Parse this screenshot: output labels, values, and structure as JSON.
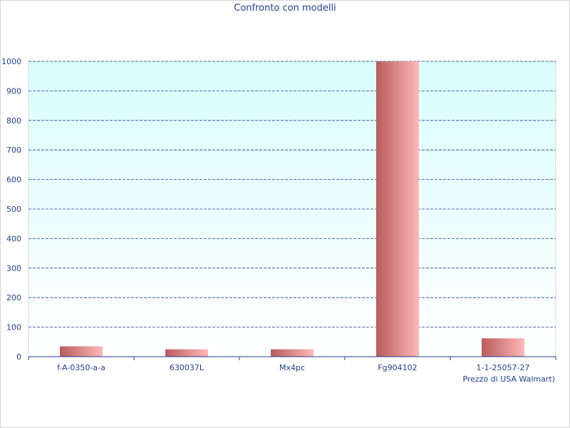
{
  "chart_data": {
    "type": "bar",
    "title": "Confronto con modelli",
    "xlabel": "Prezzo di USA Walmart)",
    "ylabel": "",
    "categories": [
      "f-A-0350-a-a",
      "630037L",
      "Mx4pc",
      "Fg904102",
      "1-1-25057-27"
    ],
    "values": [
      35,
      25,
      25,
      1000,
      62
    ],
    "ylim": [
      0,
      1000
    ],
    "yticks": [
      0,
      100,
      200,
      300,
      400,
      500,
      600,
      700,
      800,
      900,
      1000
    ],
    "grid": true,
    "legend": "none",
    "colors": {
      "bar_dark": "#b85c5c",
      "bar_light": "#ffb8b8",
      "plot_bg_top": "#d9fdfd",
      "plot_bg_bottom": "#ffffff",
      "grid": "#1f3f8f",
      "text": "#1f3f8f"
    }
  }
}
